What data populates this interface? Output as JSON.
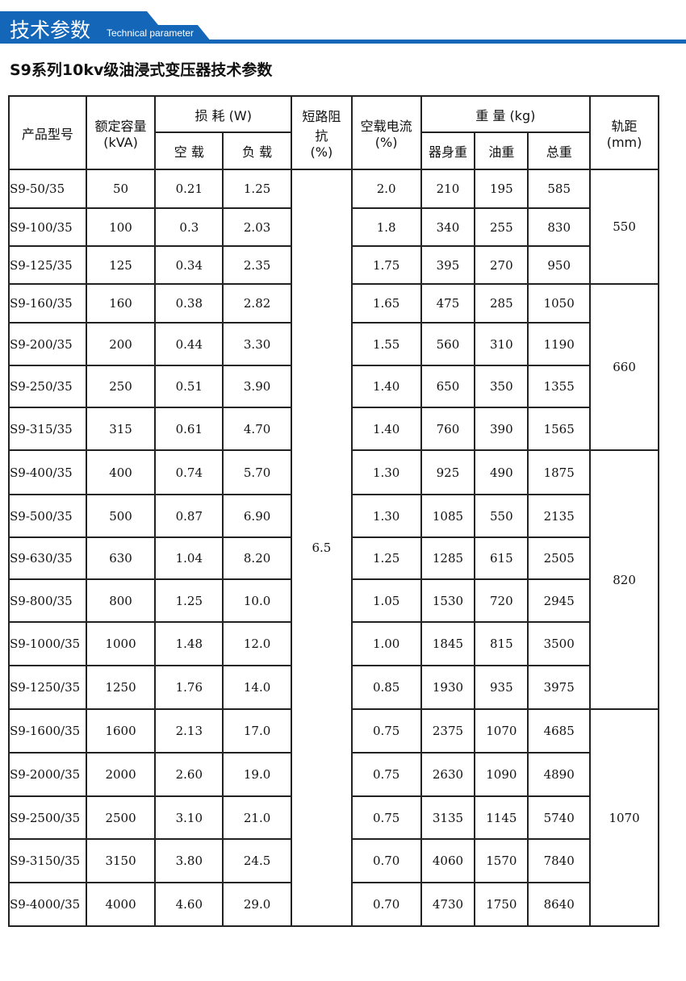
{
  "banner": {
    "title": "技术参数",
    "subtitle": "Technical parameter",
    "color": "#1366b8"
  },
  "page_title": "S9系列10kv级油浸式变压器技术参数",
  "headers": {
    "model": "产品型号",
    "capacity": "额定容量\n(kVA)",
    "loss": "损 耗 (W)",
    "loss_noload": "空 载",
    "loss_load": "负 载",
    "impedance": "短路阻\n抗\n(%)",
    "noload_current": "空载电流\n(%)",
    "weight": "重 量 (kg)",
    "w_body": "器身重",
    "w_oil": "油重",
    "w_total": "总重",
    "gauge": "轨距\n(mm)"
  },
  "impedance_value": "6.5",
  "gauge_groups": [
    {
      "value": "550",
      "rows": 3
    },
    {
      "value": "660",
      "rows": 4
    },
    {
      "value": "820",
      "rows": 6
    },
    {
      "value": "1070",
      "rows": 5
    }
  ],
  "rows": [
    [
      "S9-50/35",
      "50",
      "0.21",
      "1.25",
      "2.0",
      "210",
      "195",
      "585"
    ],
    [
      "S9-100/35",
      "100",
      "0.3",
      "2.03",
      "1.8",
      "340",
      "255",
      "830"
    ],
    [
      "S9-125/35",
      "125",
      "0.34",
      "2.35",
      "1.75",
      "395",
      "270",
      "950"
    ],
    [
      "S9-160/35",
      "160",
      "0.38",
      "2.82",
      "1.65",
      "475",
      "285",
      "1050"
    ],
    [
      "S9-200/35",
      "200",
      "0.44",
      "3.30",
      "1.55",
      "560",
      "310",
      "1190"
    ],
    [
      "S9-250/35",
      "250",
      "0.51",
      "3.90",
      "1.40",
      "650",
      "350",
      "1355"
    ],
    [
      "S9-315/35",
      "315",
      "0.61",
      "4.70",
      "1.40",
      "760",
      "390",
      "1565"
    ],
    [
      "S9-400/35",
      "400",
      "0.74",
      "5.70",
      "1.30",
      "925",
      "490",
      "1875"
    ],
    [
      "S9-500/35",
      "500",
      "0.87",
      "6.90",
      "1.30",
      "1085",
      "550",
      "2135"
    ],
    [
      "S9-630/35",
      "630",
      "1.04",
      "8.20",
      "1.25",
      "1285",
      "615",
      "2505"
    ],
    [
      "S9-800/35",
      "800",
      "1.25",
      "10.0",
      "1.05",
      "1530",
      "720",
      "2945"
    ],
    [
      "S9-1000/35",
      "1000",
      "1.48",
      "12.0",
      "1.00",
      "1845",
      "815",
      "3500"
    ],
    [
      "S9-1250/35",
      "1250",
      "1.76",
      "14.0",
      "0.85",
      "1930",
      "935",
      "3975"
    ],
    [
      "S9-1600/35",
      "1600",
      "2.13",
      "17.0",
      "0.75",
      "2375",
      "1070",
      "4685"
    ],
    [
      "S9-2000/35",
      "2000",
      "2.60",
      "19.0",
      "0.75",
      "2630",
      "1090",
      "4890"
    ],
    [
      "S9-2500/35",
      "2500",
      "3.10",
      "21.0",
      "0.75",
      "3135",
      "1145",
      "5740"
    ],
    [
      "S9-3150/35",
      "3150",
      "3.80",
      "24.5",
      "0.70",
      "4060",
      "1570",
      "7840"
    ],
    [
      "S9-4000/35",
      "4000",
      "4.60",
      "29.0",
      "0.70",
      "4730",
      "1750",
      "8640"
    ]
  ]
}
